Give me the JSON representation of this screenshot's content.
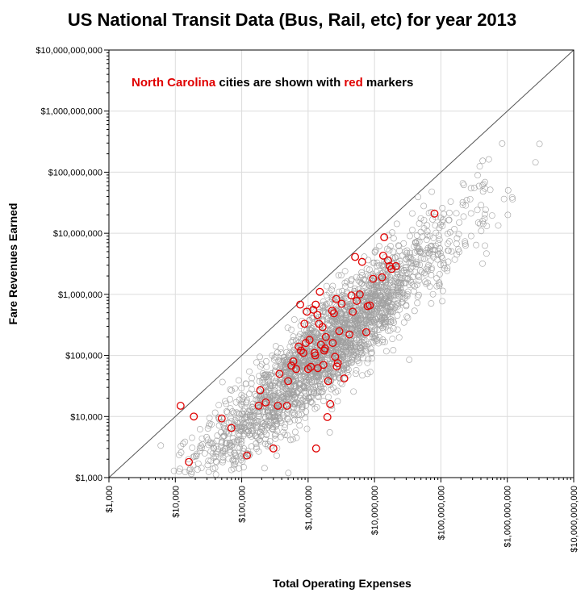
{
  "chart_data": {
    "type": "scatter",
    "title": "US National Transit Data (Bus, Rail, etc) for year 2013",
    "xlabel": "Total Operating Expenses",
    "ylabel": "Fare Revenues Earned",
    "xscale": "log",
    "yscale": "log",
    "xlim": [
      1000,
      10000000000
    ],
    "ylim": [
      1000,
      10000000000
    ],
    "grid": true,
    "x_ticks": [
      "$1,000",
      "$10,000",
      "$100,000",
      "$1,000,000",
      "$10,000,000",
      "$100,000,000",
      "$1,000,000,000",
      "$10,000,000,000"
    ],
    "y_ticks": [
      "$1,000",
      "$10,000",
      "$100,000",
      "$1,000,000",
      "$10,000,000",
      "$100,000,000",
      "$1,000,000,000",
      "$10,000,000,000"
    ],
    "reference_line": "y = x",
    "annotation": {
      "part1": "North Carolina",
      "part2": " cities are shown with ",
      "part3": "red",
      "part4": " markers"
    },
    "colors": {
      "nc": "#e00000",
      "other": "#a0a0a0",
      "grid": "#dcdcdc",
      "line": "#555555"
    },
    "series": [
      {
        "name": "North Carolina",
        "color": "#e00000",
        "points": [
          [
            12000,
            15000
          ],
          [
            16000,
            1800
          ],
          [
            19000,
            10000
          ],
          [
            50000,
            9300
          ],
          [
            70000,
            6500
          ],
          [
            120000,
            2300
          ],
          [
            180000,
            15000
          ],
          [
            190000,
            27000
          ],
          [
            230000,
            17000
          ],
          [
            300000,
            3000
          ],
          [
            350000,
            15000
          ],
          [
            370000,
            50000
          ],
          [
            480000,
            15000
          ],
          [
            500000,
            38000
          ],
          [
            560000,
            68000
          ],
          [
            600000,
            80000
          ],
          [
            660000,
            60000
          ],
          [
            720000,
            140000
          ],
          [
            760000,
            680000
          ],
          [
            780000,
            120000
          ],
          [
            850000,
            110000
          ],
          [
            880000,
            330000
          ],
          [
            920000,
            160000
          ],
          [
            960000,
            520000
          ],
          [
            1000000,
            60000
          ],
          [
            1050000,
            180000
          ],
          [
            1100000,
            65000
          ],
          [
            1200000,
            560000
          ],
          [
            1250000,
            110000
          ],
          [
            1280000,
            100000
          ],
          [
            1300000,
            680000
          ],
          [
            1320000,
            3000
          ],
          [
            1380000,
            460000
          ],
          [
            1400000,
            62000
          ],
          [
            1460000,
            330000
          ],
          [
            1500000,
            1100000
          ],
          [
            1560000,
            150000
          ],
          [
            1650000,
            290000
          ],
          [
            1700000,
            70000
          ],
          [
            1750000,
            120000
          ],
          [
            1800000,
            130000
          ],
          [
            1850000,
            200000
          ],
          [
            1950000,
            9800
          ],
          [
            2000000,
            38000
          ],
          [
            2150000,
            16000
          ],
          [
            2300000,
            540000
          ],
          [
            2350000,
            160000
          ],
          [
            2450000,
            490000
          ],
          [
            2550000,
            95000
          ],
          [
            2650000,
            840000
          ],
          [
            2700000,
            66000
          ],
          [
            2800000,
            75000
          ],
          [
            2950000,
            250000
          ],
          [
            3200000,
            700000
          ],
          [
            3500000,
            42000
          ],
          [
            4200000,
            220000
          ],
          [
            4500000,
            960000
          ],
          [
            4700000,
            520000
          ],
          [
            5100000,
            4100000
          ],
          [
            5400000,
            780000
          ],
          [
            6000000,
            1000000
          ],
          [
            6500000,
            3400000
          ],
          [
            7500000,
            240000
          ],
          [
            7900000,
            640000
          ],
          [
            8500000,
            660000
          ],
          [
            9500000,
            1800000
          ],
          [
            13000000,
            1900000
          ],
          [
            13500000,
            4300000
          ],
          [
            14000000,
            8600000
          ],
          [
            16000000,
            3600000
          ],
          [
            17000000,
            2900000
          ],
          [
            18000000,
            2600000
          ],
          [
            21000000,
            2900000
          ],
          [
            80000000,
            21000000
          ]
        ]
      }
    ]
  }
}
